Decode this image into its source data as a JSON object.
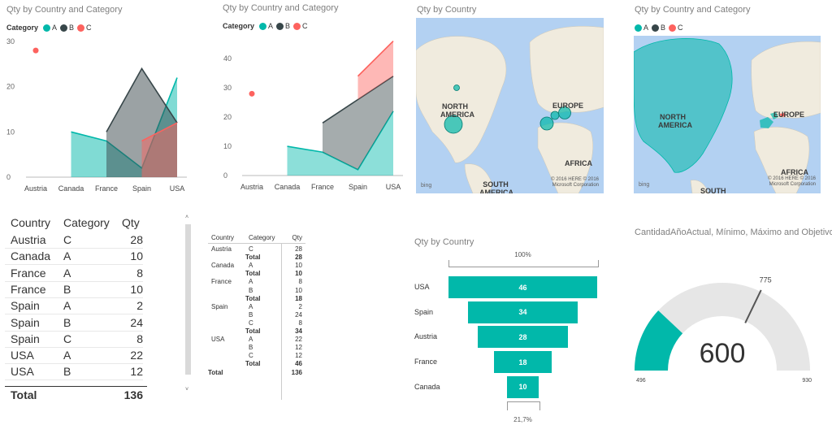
{
  "colors": {
    "A": "#01b8aa",
    "B": "#374649",
    "C": "#fd625e",
    "gauge_bg": "#e6e6e6"
  },
  "chart_data": [
    {
      "type": "area",
      "title": "Qty by Country and Category",
      "legend": {
        "title": "Category",
        "position": "top-left",
        "entries": [
          "A",
          "B",
          "C"
        ]
      },
      "categories": [
        "Austria",
        "Canada",
        "France",
        "Spain",
        "USA"
      ],
      "yticks": [
        0,
        10,
        20,
        30
      ],
      "ylim": [
        0,
        30
      ],
      "overlap": true,
      "series": [
        {
          "name": "A",
          "values": [
            null,
            10,
            8,
            2,
            22
          ]
        },
        {
          "name": "B",
          "values": [
            null,
            null,
            10,
            24,
            12
          ]
        },
        {
          "name": "C",
          "values": [
            28,
            null,
            null,
            8,
            12
          ]
        }
      ]
    },
    {
      "type": "area",
      "stacked": true,
      "title": "Qty by Country and Category",
      "legend": {
        "title": "Category",
        "position": "top-left",
        "entries": [
          "A",
          "B",
          "C"
        ]
      },
      "categories": [
        "Austria",
        "Canada",
        "France",
        "Spain",
        "USA"
      ],
      "yticks": [
        0,
        10,
        20,
        30,
        40
      ],
      "ylim": [
        0,
        47
      ],
      "series": [
        {
          "name": "A",
          "values": [
            null,
            10,
            8,
            2,
            22
          ]
        },
        {
          "name": "B",
          "values": [
            null,
            null,
            10,
            24,
            12
          ]
        },
        {
          "name": "C",
          "values": [
            28,
            null,
            null,
            8,
            12
          ]
        }
      ]
    },
    {
      "type": "map",
      "title": "Qty by Country",
      "labels": [
        "NORTH AMERICA",
        "EUROPE",
        "AFRICA",
        "SOUTH AMERICA"
      ],
      "attribution": {
        "logo": "bing",
        "copyright_1": "© 2016 HERE   © 2016",
        "copyright_2": "Microsoft Corporation"
      }
    },
    {
      "type": "map",
      "title": "Qty by Country and Category",
      "legend": {
        "entries": [
          "A",
          "B",
          "C"
        ]
      },
      "labels": [
        "NORTH AMERICA",
        "EUROPE",
        "AFRICA",
        "SOUTH"
      ],
      "attribution": {
        "logo": "bing",
        "copyright_1": "© 2016 HERE   © 2016",
        "copyright_2": "Microsoft Corporation"
      }
    },
    {
      "type": "table",
      "columns": [
        "Country",
        "Category",
        "Qty"
      ],
      "rows": [
        [
          "Austria",
          "C",
          "28"
        ],
        [
          "Canada",
          "A",
          "10"
        ],
        [
          "France",
          "A",
          "8"
        ],
        [
          "France",
          "B",
          "10"
        ],
        [
          "Spain",
          "A",
          "2"
        ],
        [
          "Spain",
          "B",
          "24"
        ],
        [
          "Spain",
          "C",
          "8"
        ],
        [
          "USA",
          "A",
          "22"
        ],
        [
          "USA",
          "B",
          "12"
        ],
        [
          "USA",
          "C",
          "12"
        ]
      ],
      "total": {
        "label": "Total",
        "value": "136"
      }
    },
    {
      "type": "table",
      "columns": [
        "Country",
        "Category",
        "Qty"
      ],
      "groups": [
        {
          "country": "Austria",
          "rows": [
            [
              "C",
              "28"
            ]
          ],
          "total": "28"
        },
        {
          "country": "Canada",
          "rows": [
            [
              "A",
              "10"
            ]
          ],
          "total": "10"
        },
        {
          "country": "France",
          "rows": [
            [
              "A",
              "8"
            ],
            [
              "B",
              "10"
            ]
          ],
          "total": "18"
        },
        {
          "country": "Spain",
          "rows": [
            [
              "A",
              "2"
            ],
            [
              "B",
              "24"
            ],
            [
              "C",
              "8"
            ]
          ],
          "total": "34"
        },
        {
          "country": "USA",
          "rows": [
            [
              "A",
              "22"
            ],
            [
              "B",
              "12"
            ],
            [
              "C",
              "12"
            ]
          ],
          "total": "46"
        }
      ],
      "subtotal_label": "Total",
      "grand_total": {
        "label": "Total",
        "value": "136"
      }
    },
    {
      "type": "funnel",
      "title": "Qty by Country",
      "top_label": "100%",
      "bottom_label": "21,7%",
      "categories": [
        "USA",
        "Spain",
        "Austria",
        "France",
        "Canada"
      ],
      "values": [
        46,
        34,
        28,
        18,
        10
      ]
    },
    {
      "type": "gauge",
      "title": "CantidadAñoActual, Mínimo, Máximo and Objetivo",
      "value": 600,
      "value_label": "600",
      "min": 496,
      "max": 930,
      "target": 775,
      "min_label": "496",
      "max_label": "930",
      "target_label": "775"
    }
  ]
}
